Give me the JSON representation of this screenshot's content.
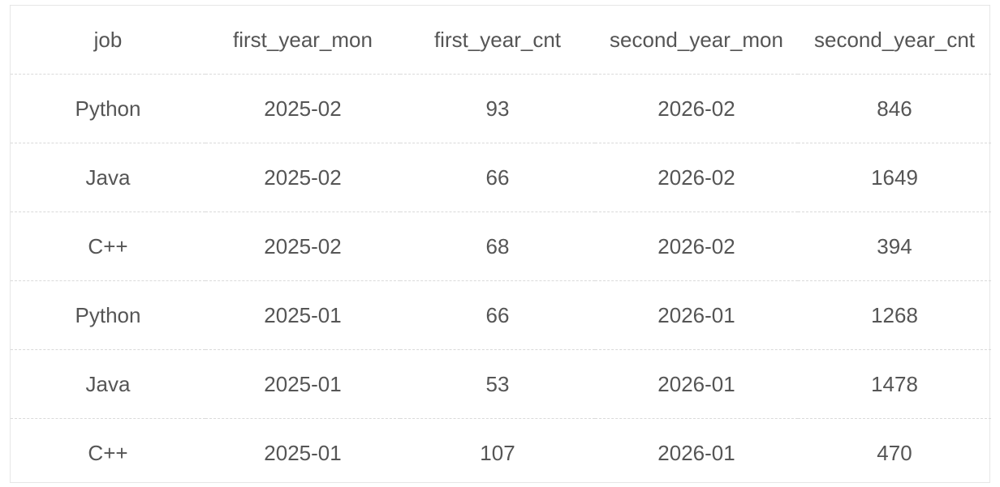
{
  "table": {
    "columns": [
      "job",
      "first_year_mon",
      "first_year_cnt",
      "second_year_mon",
      "second_year_cnt"
    ],
    "rows": [
      [
        "Python",
        "2025-02",
        "93",
        "2026-02",
        "846"
      ],
      [
        "Java",
        "2025-02",
        "66",
        "2026-02",
        "1649"
      ],
      [
        "C++",
        "2025-02",
        "68",
        "2026-02",
        "394"
      ],
      [
        "Python",
        "2025-01",
        "66",
        "2026-01",
        "1268"
      ],
      [
        "Java",
        "2025-01",
        "53",
        "2026-01",
        "1478"
      ],
      [
        "C++",
        "2025-01",
        "107",
        "2026-01",
        "470"
      ]
    ]
  }
}
